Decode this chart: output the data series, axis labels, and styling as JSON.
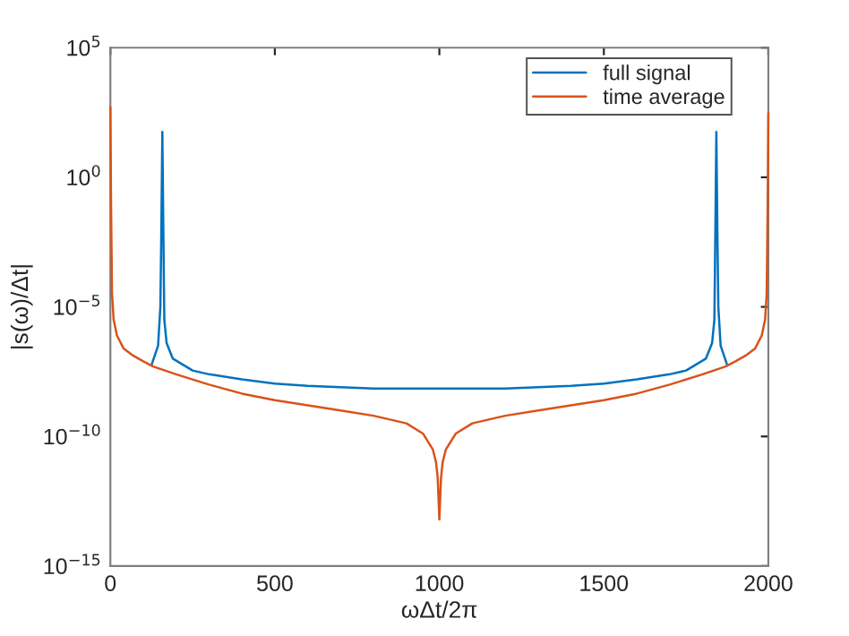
{
  "chart_data": {
    "type": "line",
    "xlabel": "ωΔt/2π",
    "ylabel": "|s(ω)/Δt|",
    "log": "y",
    "grid": false,
    "legend": "top right",
    "marker": "none",
    "line_style": "solid",
    "xlim": [
      0,
      2000
    ],
    "xticks": [
      0,
      500,
      1000,
      1500,
      2000
    ],
    "ylim": [
      1e-15,
      100000
    ],
    "yticks": [
      {
        "value": 1e-15,
        "label": "10$^{−15}$"
      },
      {
        "value": 1e-10,
        "label": "10$^{−10}$"
      },
      {
        "value": 1e-05,
        "label": "10$^{−5}$"
      },
      {
        "value": 1,
        "label": "10$^{0}$"
      },
      {
        "value": 100000,
        "label": "10$^{5}$"
      }
    ],
    "series": [
      {
        "name": "full signal",
        "color": "#0072bd",
        "x": [
          125,
          145,
          152,
          155,
          158,
          161,
          164,
          171,
          190,
          250,
          300,
          400,
          500,
          600,
          700,
          800,
          900,
          1000,
          1100,
          1200,
          1300,
          1400,
          1500,
          1600,
          1700,
          1750,
          1810,
          1829,
          1836,
          1839,
          1842,
          1845,
          1848,
          1855,
          1875
        ],
        "values": [
          5.6e-08,
          3.2e-07,
          1e-05,
          0.01,
          56,
          0.01,
          3.2e-06,
          4e-07,
          1e-07,
          3.5e-08,
          2.5e-08,
          1.6e-08,
          1.1e-08,
          8.9e-09,
          7.9e-09,
          7.1e-09,
          7.1e-09,
          7.1e-09,
          7.1e-09,
          7.1e-09,
          7.9e-09,
          8.9e-09,
          1.1e-08,
          1.6e-08,
          2.5e-08,
          3.5e-08,
          1e-07,
          4e-07,
          3.2e-06,
          0.01,
          56,
          0.01,
          1e-05,
          3.2e-07,
          5.6e-08
        ]
      },
      {
        "name": "time average",
        "color": "#d95319",
        "x": [
          0,
          2,
          5,
          10,
          20,
          40,
          70,
          100,
          130,
          200,
          300,
          400,
          500,
          600,
          700,
          800,
          900,
          950,
          980,
          990,
          995,
          1000,
          1005,
          1010,
          1020,
          1050,
          1100,
          1200,
          1300,
          1400,
          1500,
          1600,
          1700,
          1800,
          1870,
          1900,
          1930,
          1960,
          1980,
          1990,
          1995,
          1998,
          2000
        ],
        "values": [
          500,
          0.1,
          3.2e-05,
          3.2e-06,
          7.9e-07,
          2.5e-07,
          1.3e-07,
          7.9e-08,
          5e-08,
          2.5e-08,
          1e-08,
          4.5e-09,
          2.5e-09,
          1.6e-09,
          1e-09,
          6.3e-10,
          3.2e-10,
          1.3e-10,
          3.2e-11,
          1e-11,
          2.5e-12,
          6.3e-14,
          2.5e-12,
          1e-11,
          3.2e-11,
          1.3e-10,
          3.2e-10,
          6.3e-10,
          1e-09,
          1.6e-09,
          2.5e-09,
          4.5e-09,
          1e-08,
          2.5e-08,
          5e-08,
          7.9e-08,
          1.3e-07,
          2.5e-07,
          7.9e-07,
          3.2e-06,
          3.2e-05,
          0.1,
          300
        ]
      }
    ]
  }
}
